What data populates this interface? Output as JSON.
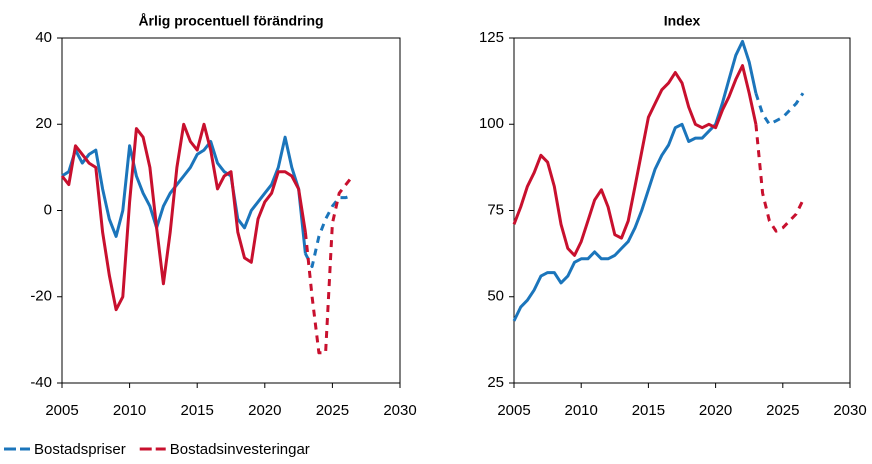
{
  "chart_data": [
    {
      "type": "line",
      "title": "Årlig procentuell förändring",
      "x": [
        2005,
        2005.5,
        2006,
        2006.5,
        2007,
        2007.5,
        2008,
        2008.5,
        2009,
        2009.5,
        2010,
        2010.5,
        2011,
        2011.5,
        2012,
        2012.5,
        2013,
        2013.5,
        2014,
        2014.5,
        2015,
        2015.5,
        2016,
        2016.5,
        2017,
        2017.5,
        2018,
        2018.5,
        2019,
        2019.5,
        2020,
        2020.5,
        2021,
        2021.5,
        2022,
        2022.5,
        2023,
        2023.5,
        2024,
        2024.5,
        2025,
        2025.5,
        2026,
        2026.5
      ],
      "forecast_start": 2023,
      "series": [
        {
          "name": "Bostadspriser",
          "color": "#1b75bb",
          "values": [
            8,
            9,
            14,
            11,
            13,
            14,
            5,
            -2,
            -6,
            0,
            15,
            8,
            4,
            1,
            -4,
            1,
            4,
            6,
            8,
            10,
            13,
            14,
            16,
            11,
            9,
            8,
            -2,
            -4,
            0,
            2,
            4,
            6,
            10,
            17,
            10,
            5,
            -10,
            -13,
            -6,
            -2,
            1,
            3,
            3,
            3.5
          ]
        },
        {
          "name": "Bostadsinvesteringar",
          "color": "#c8102e",
          "values": [
            8,
            6,
            15,
            13,
            11,
            10,
            -5,
            -15,
            -23,
            -20,
            2,
            19,
            17,
            10,
            -4,
            -17,
            -5,
            10,
            20,
            16,
            14,
            20,
            14,
            5,
            8,
            9,
            -5,
            -11,
            -12,
            -2,
            2,
            4,
            9,
            9,
            8,
            5,
            -5,
            -20,
            -33,
            -33,
            -3,
            4,
            6,
            8
          ]
        }
      ],
      "xlim": [
        2005,
        2030
      ],
      "xticks": [
        2005,
        2010,
        2015,
        2020,
        2025,
        2030
      ],
      "ylim": [
        -40,
        40
      ],
      "yticks": [
        -40,
        -20,
        0,
        20,
        40
      ]
    },
    {
      "type": "line",
      "title": "Index",
      "x": [
        2005,
        2005.5,
        2006,
        2006.5,
        2007,
        2007.5,
        2008,
        2008.5,
        2009,
        2009.5,
        2010,
        2010.5,
        2011,
        2011.5,
        2012,
        2012.5,
        2013,
        2013.5,
        2014,
        2014.5,
        2015,
        2015.5,
        2016,
        2016.5,
        2017,
        2017.5,
        2018,
        2018.5,
        2019,
        2019.5,
        2020,
        2020.5,
        2021,
        2021.5,
        2022,
        2022.5,
        2023,
        2023.5,
        2024,
        2024.5,
        2025,
        2025.5,
        2026,
        2026.5
      ],
      "forecast_start": 2023,
      "series": [
        {
          "name": "Bostadspriser",
          "color": "#1b75bb",
          "values": [
            43,
            47,
            49,
            52,
            56,
            57,
            57,
            54,
            56,
            60,
            61,
            61,
            63,
            61,
            61,
            62,
            64,
            66,
            70,
            75,
            81,
            87,
            91,
            94,
            99,
            100,
            95,
            96,
            96,
            98,
            100,
            106,
            113,
            120,
            124,
            118,
            109,
            103,
            100,
            101,
            102,
            104,
            106,
            109
          ]
        },
        {
          "name": "Bostadsinvesteringar",
          "color": "#c8102e",
          "values": [
            71,
            76,
            82,
            86,
            91,
            89,
            82,
            71,
            64,
            62,
            66,
            72,
            78,
            81,
            76,
            68,
            67,
            72,
            82,
            92,
            102,
            106,
            110,
            112,
            115,
            112,
            105,
            100,
            99,
            100,
            99,
            104,
            108,
            113,
            117,
            109,
            100,
            80,
            72,
            69,
            70,
            72,
            74,
            78
          ]
        }
      ],
      "xlim": [
        2005,
        2030
      ],
      "xticks": [
        2005,
        2010,
        2015,
        2020,
        2025,
        2030
      ],
      "ylim": [
        25,
        125
      ],
      "yticks": [
        25,
        50,
        75,
        100,
        125
      ]
    }
  ]
}
